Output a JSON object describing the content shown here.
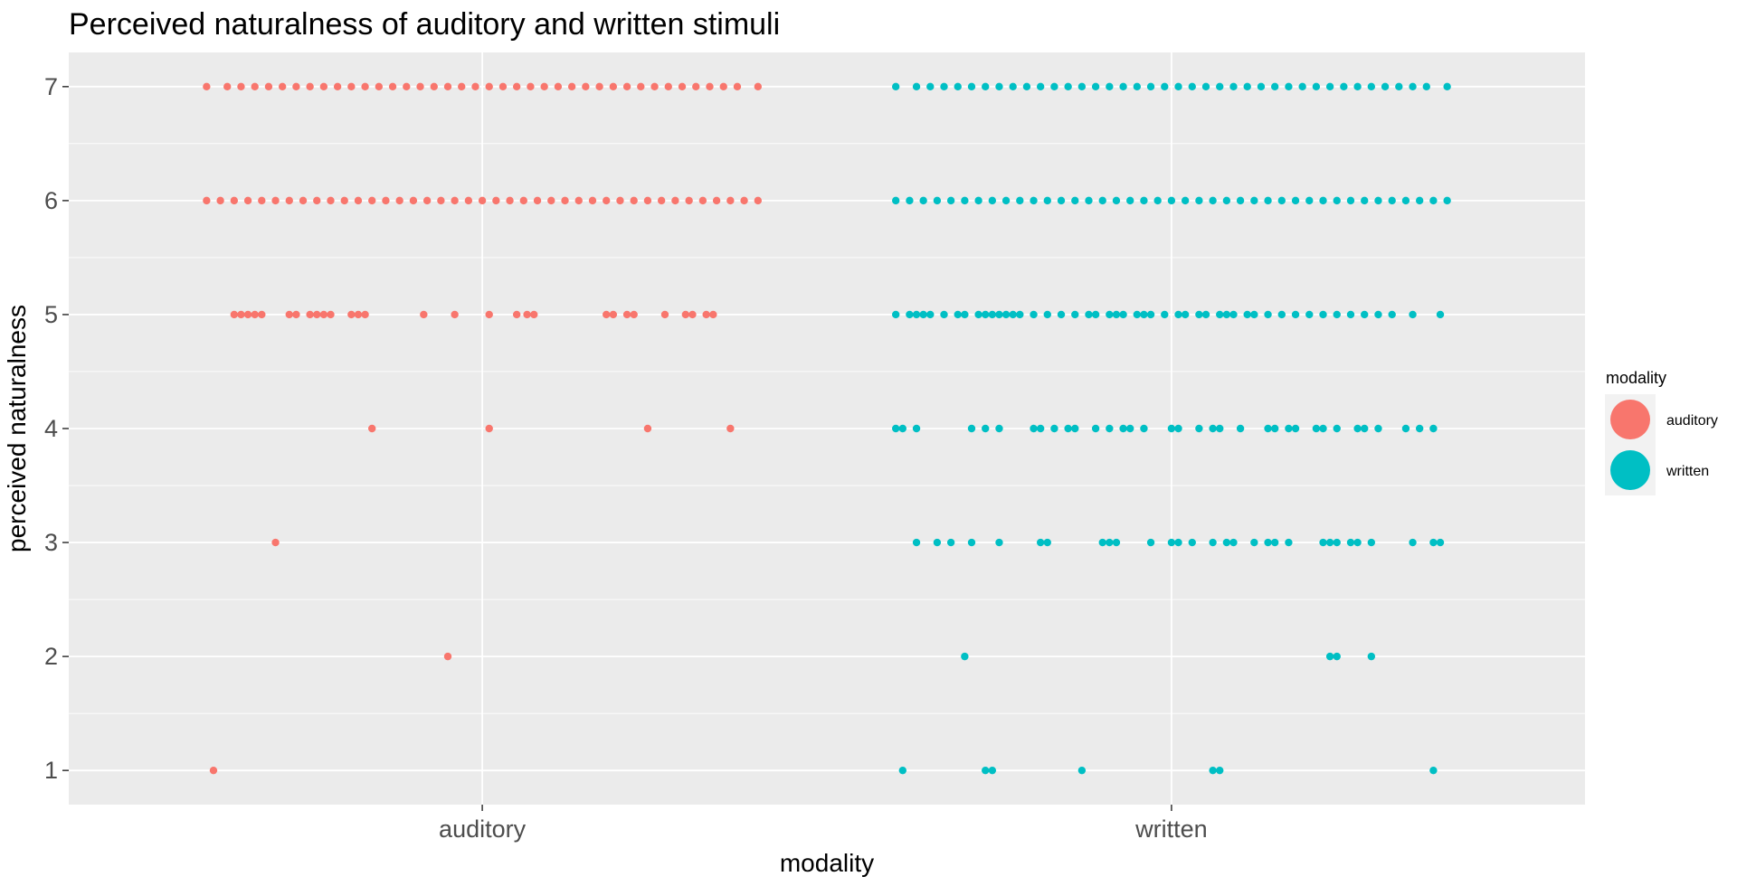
{
  "chart_data": {
    "type": "scatter",
    "title": "Perceived naturalness of auditory and written stimuli",
    "xlabel": "modality",
    "ylabel": "perceived naturalness",
    "categories": [
      "auditory",
      "written"
    ],
    "ylim": [
      0.7,
      7.3
    ],
    "yticks": [
      1,
      2,
      3,
      4,
      5,
      6,
      7
    ],
    "grid": true,
    "legend": {
      "title": "modality",
      "position": "right",
      "entries": [
        "auditory",
        "written"
      ]
    },
    "colors": {
      "auditory": "#F8766D",
      "written": "#00BFC4",
      "panel": "#EBEBEB",
      "grid": "#FFFFFF"
    },
    "jitter_width": 0.4,
    "series": [
      {
        "name": "auditory",
        "points": [
          {
            "y": 7,
            "x": [
              -0.4,
              -0.37,
              -0.35,
              -0.33,
              -0.31,
              -0.29,
              -0.27,
              -0.25,
              -0.23,
              -0.21,
              -0.19,
              -0.17,
              -0.15,
              -0.13,
              -0.11,
              -0.09,
              -0.07,
              -0.05,
              -0.03,
              -0.01,
              0.01,
              0.03,
              0.05,
              0.07,
              0.09,
              0.11,
              0.13,
              0.15,
              0.17,
              0.19,
              0.21,
              0.23,
              0.25,
              0.27,
              0.29,
              0.31,
              0.33,
              0.35,
              0.37,
              0.4
            ]
          },
          {
            "y": 6,
            "x": [
              -0.4,
              -0.38,
              -0.36,
              -0.34,
              -0.32,
              -0.3,
              -0.28,
              -0.26,
              -0.24,
              -0.22,
              -0.2,
              -0.18,
              -0.16,
              -0.14,
              -0.12,
              -0.1,
              -0.08,
              -0.06,
              -0.04,
              -0.02,
              0.0,
              0.02,
              0.04,
              0.06,
              0.08,
              0.1,
              0.12,
              0.14,
              0.16,
              0.18,
              0.2,
              0.22,
              0.24,
              0.26,
              0.28,
              0.3,
              0.32,
              0.34,
              0.36,
              0.38,
              0.4
            ]
          },
          {
            "y": 5,
            "x": [
              -0.36,
              -0.35,
              -0.34,
              -0.33,
              -0.32,
              -0.28,
              -0.27,
              -0.25,
              -0.24,
              -0.23,
              -0.22,
              -0.19,
              -0.18,
              -0.17,
              -0.085,
              -0.04,
              0.01,
              0.05,
              0.065,
              0.075,
              0.18,
              0.19,
              0.21,
              0.22,
              0.265,
              0.295,
              0.305,
              0.325,
              0.335
            ]
          },
          {
            "y": 4,
            "x": [
              -0.16,
              0.01,
              0.24,
              0.36
            ]
          },
          {
            "y": 3,
            "x": [
              -0.3
            ]
          },
          {
            "y": 2,
            "x": [
              -0.05
            ]
          },
          {
            "y": 1,
            "x": [
              -0.39
            ]
          }
        ]
      },
      {
        "name": "written",
        "points": [
          {
            "y": 7,
            "x": [
              -0.4,
              -0.37,
              -0.35,
              -0.33,
              -0.31,
              -0.29,
              -0.27,
              -0.25,
              -0.23,
              -0.21,
              -0.19,
              -0.17,
              -0.15,
              -0.13,
              -0.11,
              -0.09,
              -0.07,
              -0.05,
              -0.03,
              -0.01,
              0.01,
              0.03,
              0.05,
              0.07,
              0.09,
              0.11,
              0.13,
              0.15,
              0.17,
              0.19,
              0.21,
              0.23,
              0.25,
              0.27,
              0.29,
              0.31,
              0.33,
              0.35,
              0.37,
              0.4
            ]
          },
          {
            "y": 6,
            "x": [
              -0.4,
              -0.38,
              -0.36,
              -0.34,
              -0.32,
              -0.3,
              -0.28,
              -0.26,
              -0.24,
              -0.22,
              -0.2,
              -0.18,
              -0.16,
              -0.14,
              -0.12,
              -0.1,
              -0.08,
              -0.06,
              -0.04,
              -0.02,
              0.0,
              0.02,
              0.04,
              0.06,
              0.08,
              0.1,
              0.12,
              0.14,
              0.16,
              0.18,
              0.2,
              0.22,
              0.24,
              0.26,
              0.28,
              0.3,
              0.32,
              0.34,
              0.36,
              0.38,
              0.4
            ]
          },
          {
            "y": 5,
            "x": [
              -0.4,
              -0.38,
              -0.37,
              -0.36,
              -0.35,
              -0.33,
              -0.31,
              -0.3,
              -0.28,
              -0.27,
              -0.26,
              -0.25,
              -0.24,
              -0.23,
              -0.22,
              -0.2,
              -0.18,
              -0.16,
              -0.14,
              -0.12,
              -0.11,
              -0.09,
              -0.08,
              -0.07,
              -0.05,
              -0.04,
              -0.03,
              -0.01,
              0.01,
              0.02,
              0.04,
              0.05,
              0.07,
              0.08,
              0.09,
              0.11,
              0.12,
              0.14,
              0.16,
              0.18,
              0.2,
              0.22,
              0.24,
              0.26,
              0.28,
              0.3,
              0.32,
              0.35,
              0.39
            ]
          },
          {
            "y": 4,
            "x": [
              -0.4,
              -0.39,
              -0.37,
              -0.29,
              -0.27,
              -0.25,
              -0.2,
              -0.19,
              -0.17,
              -0.15,
              -0.14,
              -0.11,
              -0.09,
              -0.07,
              -0.06,
              -0.04,
              0.0,
              0.01,
              0.04,
              0.06,
              0.07,
              0.1,
              0.14,
              0.15,
              0.17,
              0.18,
              0.21,
              0.22,
              0.24,
              0.27,
              0.28,
              0.3,
              0.34,
              0.36,
              0.38
            ]
          },
          {
            "y": 3,
            "x": [
              -0.37,
              -0.34,
              -0.32,
              -0.29,
              -0.25,
              -0.19,
              -0.18,
              -0.1,
              -0.09,
              -0.08,
              -0.03,
              0.0,
              0.01,
              0.03,
              0.06,
              0.08,
              0.09,
              0.12,
              0.14,
              0.15,
              0.17,
              0.22,
              0.23,
              0.24,
              0.26,
              0.27,
              0.29,
              0.35,
              0.38,
              0.39
            ]
          },
          {
            "y": 2,
            "x": [
              -0.3,
              0.23,
              0.24,
              0.29
            ]
          },
          {
            "y": 1,
            "x": [
              -0.39,
              -0.27,
              -0.26,
              -0.13,
              0.06,
              0.07,
              0.38
            ]
          }
        ]
      }
    ]
  }
}
